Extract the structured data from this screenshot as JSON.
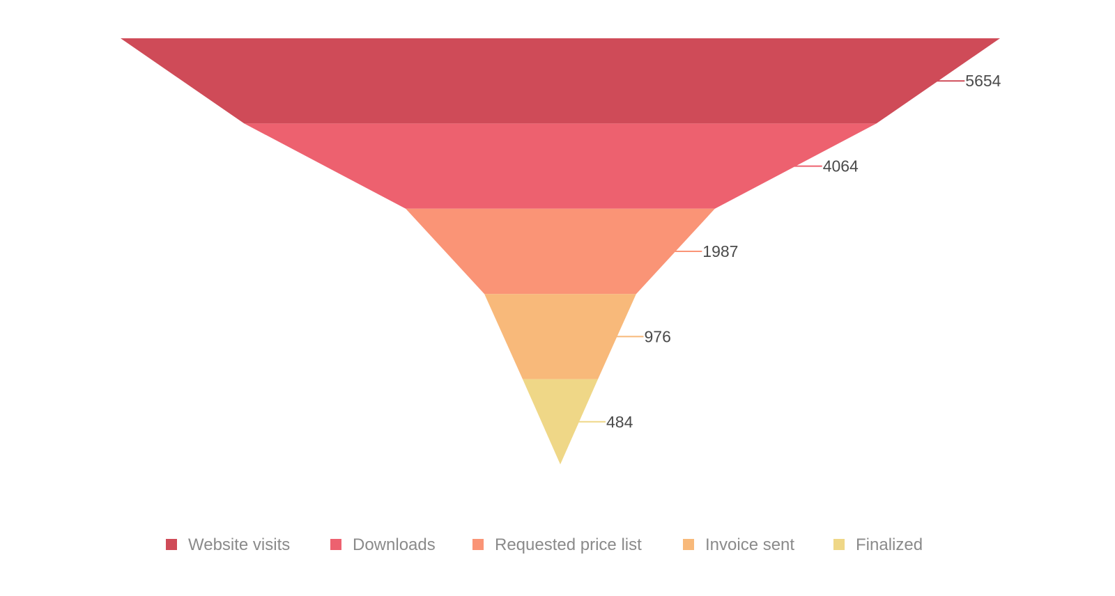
{
  "chart_data": {
    "type": "funnel",
    "categories": [
      "Website visits",
      "Downloads",
      "Requested price list",
      "Invoice sent",
      "Finalized"
    ],
    "values": [
      5654,
      4064,
      1987,
      976,
      484
    ],
    "colors": [
      "#cf4b58",
      "#ed616f",
      "#fa9476",
      "#f8b97a",
      "#efd787"
    ],
    "legend_position": "bottom"
  }
}
